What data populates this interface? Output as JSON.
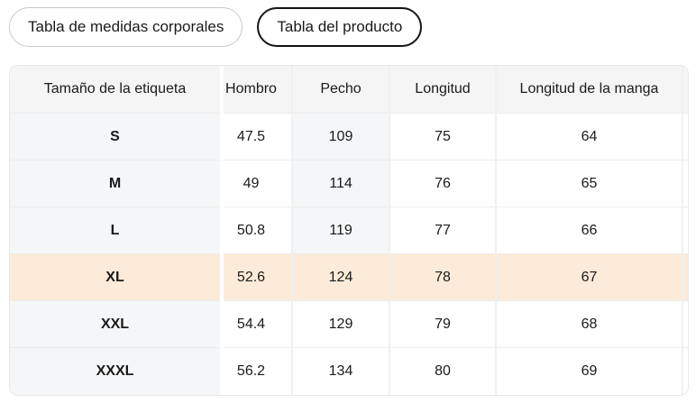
{
  "tabs": [
    {
      "label": "Tabla de medidas corporales",
      "selected": false
    },
    {
      "label": "Tabla del producto",
      "selected": true
    }
  ],
  "size_table": {
    "columns": [
      "Tamaño de la etiqueta",
      "Hombro",
      "Pecho",
      "Longitud",
      "Longitud de la manga"
    ],
    "rows": [
      {
        "size": "S",
        "values": [
          "47.5",
          "109",
          "75",
          "64"
        ]
      },
      {
        "size": "M",
        "values": [
          "49",
          "114",
          "76",
          "65"
        ]
      },
      {
        "size": "L",
        "values": [
          "50.8",
          "119",
          "77",
          "66"
        ]
      },
      {
        "size": "XL",
        "values": [
          "52.6",
          "124",
          "78",
          "67"
        ],
        "highlighted": true
      },
      {
        "size": "XXL",
        "values": [
          "54.4",
          "129",
          "79",
          "68"
        ]
      },
      {
        "size": "XXXL",
        "values": [
          "56.2",
          "134",
          "80",
          "69"
        ]
      }
    ],
    "colors": {
      "highlight_row": "#fcebd9",
      "header_bg": "#f5f5f6",
      "stripe_bg": "#f5f6f7",
      "border": "#ececec",
      "text": "#1a1a1a"
    }
  }
}
